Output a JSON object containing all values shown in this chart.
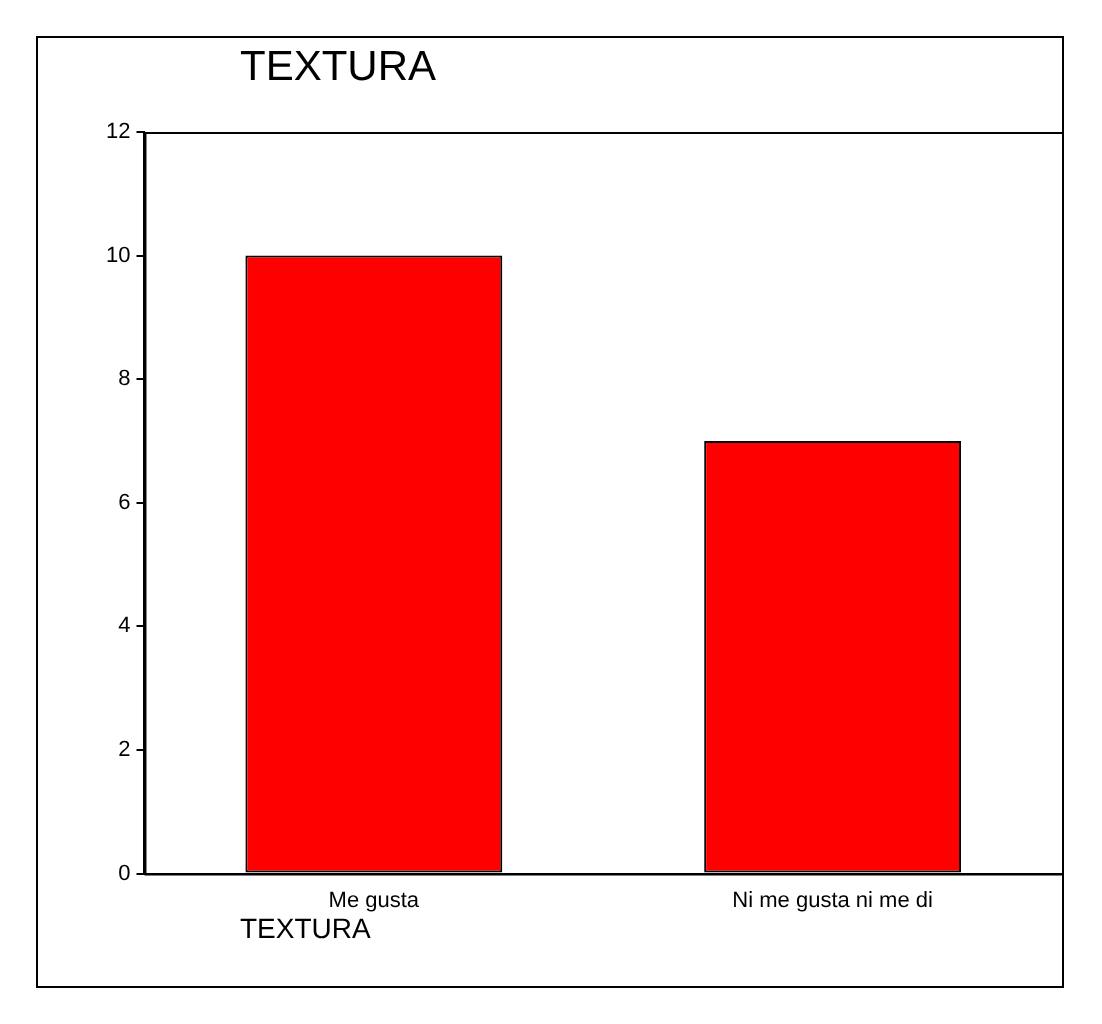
{
  "chart_data": {
    "type": "bar",
    "title": "TEXTURA",
    "xlabel": "TEXTURA",
    "categories": [
      "Me gusta",
      "Ni me gusta ni me di"
    ],
    "values": [
      10,
      7
    ],
    "color": "#ff0000",
    "ylim": [
      0,
      12
    ],
    "yticks": [
      0,
      2,
      4,
      6,
      8,
      10,
      12
    ],
    "grid": false,
    "legend": false
  }
}
